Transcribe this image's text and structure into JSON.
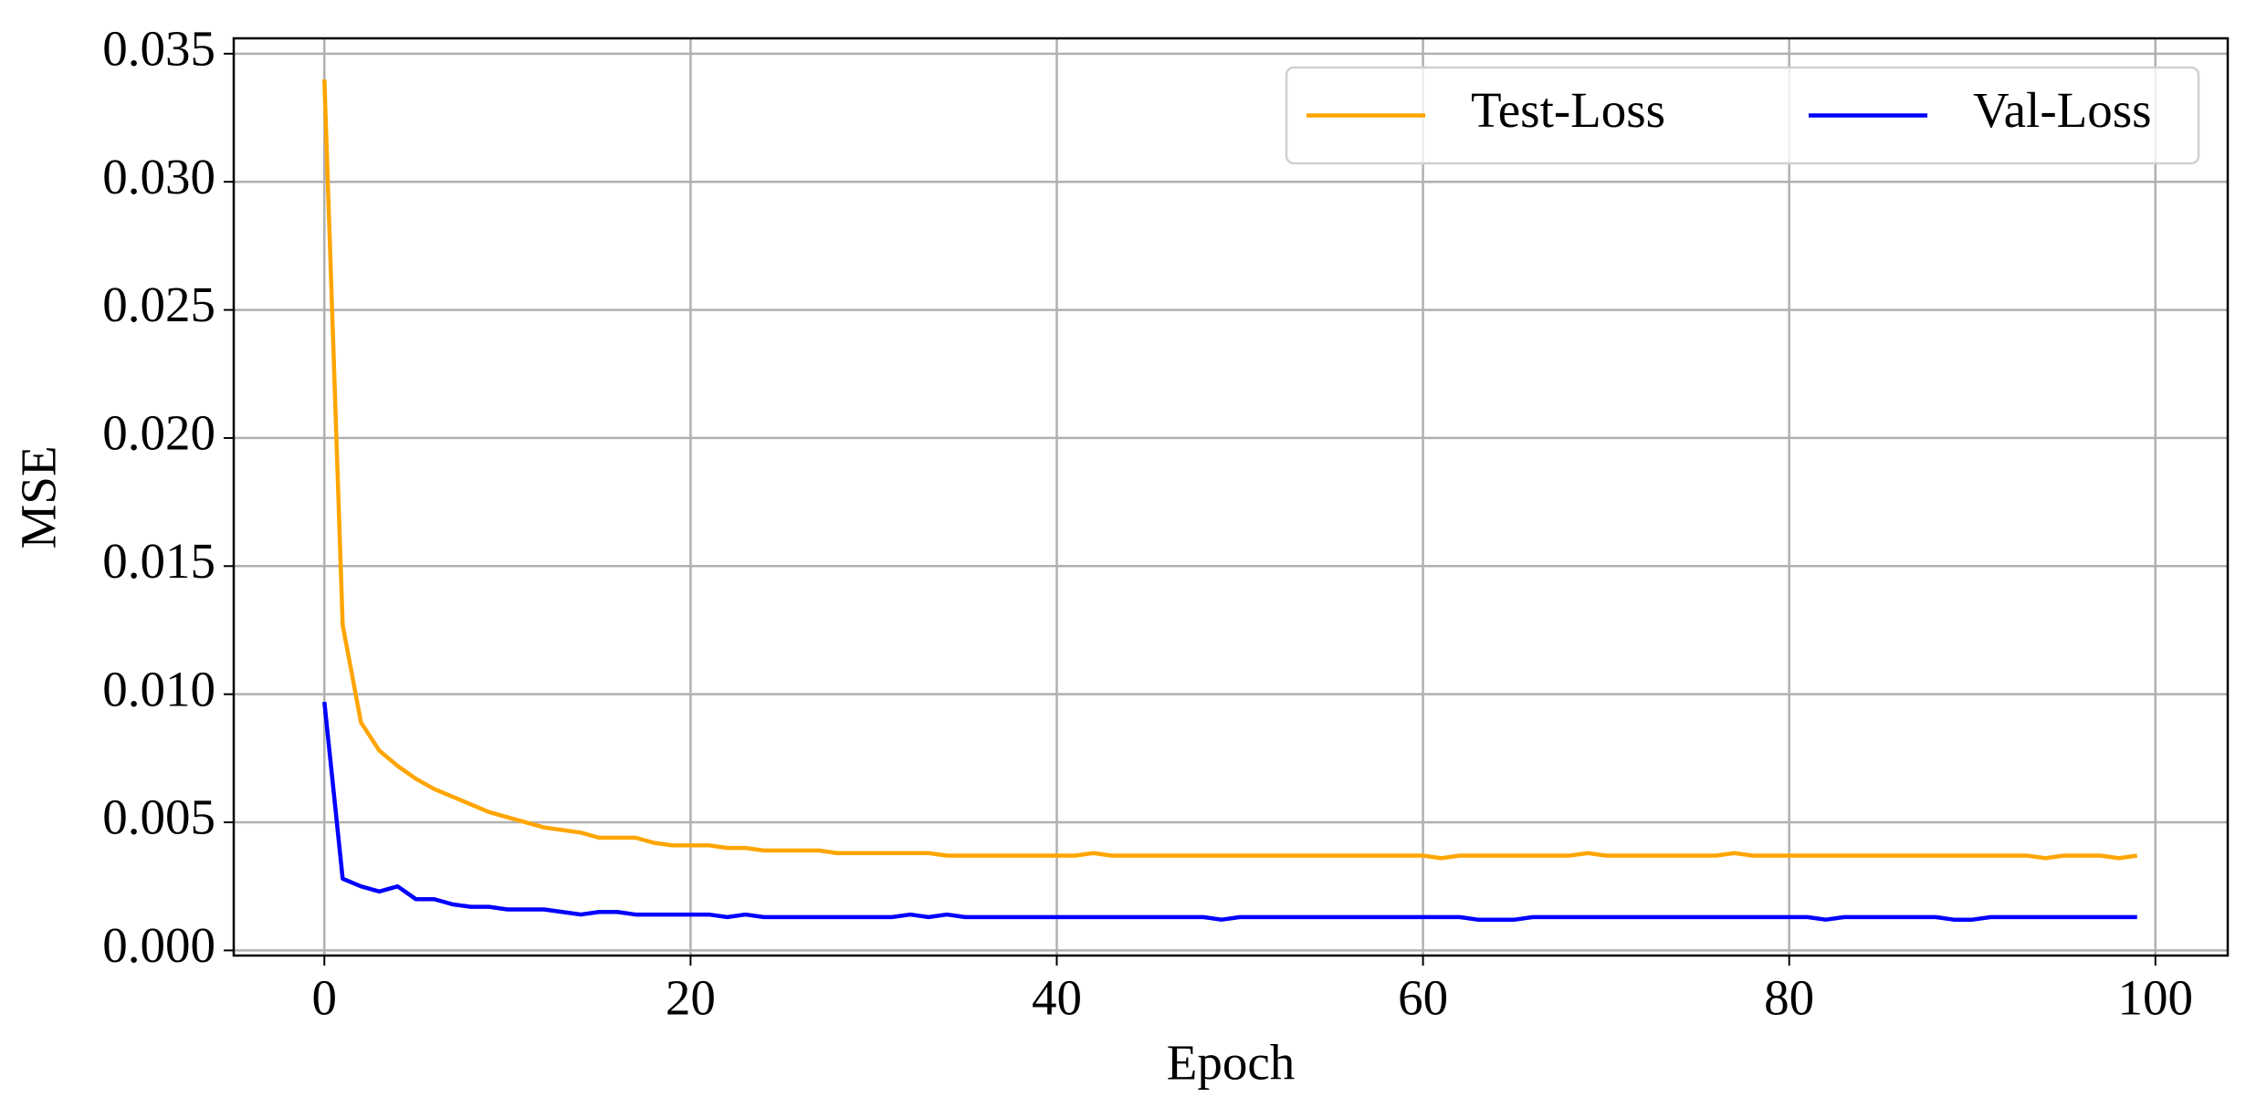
{
  "chart_data": {
    "type": "line",
    "x_label": "Epoch",
    "y_label": "MSE",
    "x": [
      0,
      1,
      2,
      3,
      4,
      5,
      6,
      7,
      8,
      9,
      10,
      11,
      12,
      13,
      14,
      15,
      16,
      17,
      18,
      19,
      20,
      21,
      22,
      23,
      24,
      25,
      26,
      27,
      28,
      29,
      30,
      31,
      32,
      33,
      34,
      35,
      36,
      37,
      38,
      39,
      40,
      41,
      42,
      43,
      44,
      45,
      46,
      47,
      48,
      49,
      50,
      51,
      52,
      53,
      54,
      55,
      56,
      57,
      58,
      59,
      60,
      61,
      62,
      63,
      64,
      65,
      66,
      67,
      68,
      69,
      70,
      71,
      72,
      73,
      74,
      75,
      76,
      77,
      78,
      79,
      80,
      81,
      82,
      83,
      84,
      85,
      86,
      87,
      88,
      89,
      90,
      91,
      92,
      93,
      94,
      95,
      96,
      97,
      98,
      99
    ],
    "series": [
      {
        "name": "Test-Loss",
        "color": "#ffa500",
        "values": [
          0.034,
          0.0127,
          0.0089,
          0.0078,
          0.0072,
          0.0067,
          0.0063,
          0.006,
          0.0057,
          0.0054,
          0.0052,
          0.005,
          0.0048,
          0.0047,
          0.0046,
          0.0044,
          0.0044,
          0.0044,
          0.0042,
          0.0041,
          0.0041,
          0.0041,
          0.004,
          0.004,
          0.0039,
          0.0039,
          0.0039,
          0.0039,
          0.0038,
          0.0038,
          0.0038,
          0.0038,
          0.0038,
          0.0038,
          0.0037,
          0.0037,
          0.0037,
          0.0037,
          0.0037,
          0.0037,
          0.0037,
          0.0037,
          0.0038,
          0.0037,
          0.0037,
          0.0037,
          0.0037,
          0.0037,
          0.0037,
          0.0037,
          0.0037,
          0.0037,
          0.0037,
          0.0037,
          0.0037,
          0.0037,
          0.0037,
          0.0037,
          0.0037,
          0.0037,
          0.0037,
          0.0036,
          0.0037,
          0.0037,
          0.0037,
          0.0037,
          0.0037,
          0.0037,
          0.0037,
          0.0038,
          0.0037,
          0.0037,
          0.0037,
          0.0037,
          0.0037,
          0.0037,
          0.0037,
          0.0038,
          0.0037,
          0.0037,
          0.0037,
          0.0037,
          0.0037,
          0.0037,
          0.0037,
          0.0037,
          0.0037,
          0.0037,
          0.0037,
          0.0037,
          0.0037,
          0.0037,
          0.0037,
          0.0037,
          0.0036,
          0.0037,
          0.0037,
          0.0037,
          0.0036,
          0.0037
        ]
      },
      {
        "name": "Val-Loss",
        "color": "#0000ff",
        "values": [
          0.0097,
          0.0028,
          0.0025,
          0.0023,
          0.0025,
          0.002,
          0.002,
          0.0018,
          0.0017,
          0.0017,
          0.0016,
          0.0016,
          0.0016,
          0.0015,
          0.0014,
          0.0015,
          0.0015,
          0.0014,
          0.0014,
          0.0014,
          0.0014,
          0.0014,
          0.0013,
          0.0014,
          0.0013,
          0.0013,
          0.0013,
          0.0013,
          0.0013,
          0.0013,
          0.0013,
          0.0013,
          0.0014,
          0.0013,
          0.0014,
          0.0013,
          0.0013,
          0.0013,
          0.0013,
          0.0013,
          0.0013,
          0.0013,
          0.0013,
          0.0013,
          0.0013,
          0.0013,
          0.0013,
          0.0013,
          0.0013,
          0.0012,
          0.0013,
          0.0013,
          0.0013,
          0.0013,
          0.0013,
          0.0013,
          0.0013,
          0.0013,
          0.0013,
          0.0013,
          0.0013,
          0.0013,
          0.0013,
          0.0012,
          0.0012,
          0.0012,
          0.0013,
          0.0013,
          0.0013,
          0.0013,
          0.0013,
          0.0013,
          0.0013,
          0.0013,
          0.0013,
          0.0013,
          0.0013,
          0.0013,
          0.0013,
          0.0013,
          0.0013,
          0.0013,
          0.0012,
          0.0013,
          0.0013,
          0.0013,
          0.0013,
          0.0013,
          0.0013,
          0.0012,
          0.0012,
          0.0013,
          0.0013,
          0.0013,
          0.0013,
          0.0013,
          0.0013,
          0.0013,
          0.0013,
          0.0013
        ]
      }
    ],
    "xlim": [
      -4.95,
      103.95
    ],
    "ylim": [
      -0.0002,
      0.0356
    ],
    "xticks": [
      0,
      20,
      40,
      60,
      80,
      100
    ],
    "yticks": [
      {
        "value": 0,
        "label": "0.000"
      },
      {
        "value": 0.005,
        "label": "0.005"
      },
      {
        "value": 0.01,
        "label": "0.010"
      },
      {
        "value": 0.015,
        "label": "0.015"
      },
      {
        "value": 0.02,
        "label": "0.020"
      },
      {
        "value": 0.025,
        "label": "0.025"
      },
      {
        "value": 0.03,
        "label": "0.030"
      },
      {
        "value": 0.035,
        "label": "0.035"
      }
    ],
    "grid": true,
    "legend": "upper-right"
  }
}
